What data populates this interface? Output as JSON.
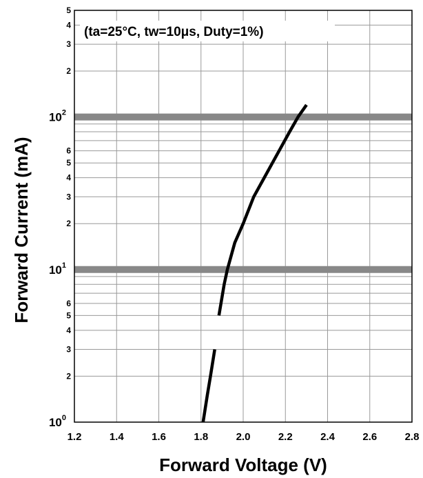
{
  "chart_data": {
    "type": "line",
    "title": "",
    "annotation": "(ta=25°C, tw=10μs, Duty=1%)",
    "xlabel": "Forward Voltage (V)",
    "ylabel": "Forward Current (mA)",
    "xlim": [
      1.2,
      2.8
    ],
    "ylim": [
      1,
      500
    ],
    "y_scale": "log",
    "grid": true,
    "x_ticks": [
      "1.2",
      "1.4",
      "1.6",
      "1.8",
      "2.0",
      "2.2",
      "2.4",
      "2.6",
      "2.8"
    ],
    "x_tick_values": [
      1.2,
      1.4,
      1.6,
      1.8,
      2.0,
      2.2,
      2.4,
      2.6,
      2.8
    ],
    "y_decades": [
      {
        "base": "10",
        "exp": "0",
        "value": 1
      },
      {
        "base": "10",
        "exp": "1",
        "value": 10
      },
      {
        "base": "10",
        "exp": "2",
        "value": 100
      }
    ],
    "y_minor_ticks": [
      {
        "label": "2",
        "value": 2
      },
      {
        "label": "3",
        "value": 3
      },
      {
        "label": "4",
        "value": 4
      },
      {
        "label": "5",
        "value": 5
      },
      {
        "label": "6",
        "value": 6
      },
      {
        "label": "2",
        "value": 20
      },
      {
        "label": "3",
        "value": 30
      },
      {
        "label": "4",
        "value": 40
      },
      {
        "label": "5",
        "value": 50
      },
      {
        "label": "6",
        "value": 60
      },
      {
        "label": "2",
        "value": 200
      },
      {
        "label": "3",
        "value": 300
      },
      {
        "label": "4",
        "value": 400
      },
      {
        "label": "5",
        "value": 500
      }
    ],
    "y_unlabeled_gridlines": [
      7,
      8,
      9,
      70,
      80,
      90
    ],
    "y_highlight_gridlines": [
      10,
      100
    ],
    "colors": {
      "curve": "#000000",
      "grid": "#999999",
      "highlight": "#888888"
    },
    "series": [
      {
        "segments": [
          [
            [
              1.81,
              1.0
            ],
            [
              1.83,
              1.5
            ],
            [
              1.845,
              2.0
            ],
            [
              1.865,
              3.0
            ]
          ],
          [
            [
              1.885,
              5.0
            ],
            [
              1.91,
              8.0
            ],
            [
              1.925,
              10.0
            ],
            [
              1.96,
              15.0
            ],
            [
              2.0,
              20.0
            ],
            [
              2.05,
              30.0
            ],
            [
              2.1,
              40.0
            ],
            [
              2.17,
              60.0
            ],
            [
              2.22,
              80.0
            ],
            [
              2.26,
              100.0
            ],
            [
              2.3,
              120.0
            ]
          ]
        ]
      }
    ]
  }
}
